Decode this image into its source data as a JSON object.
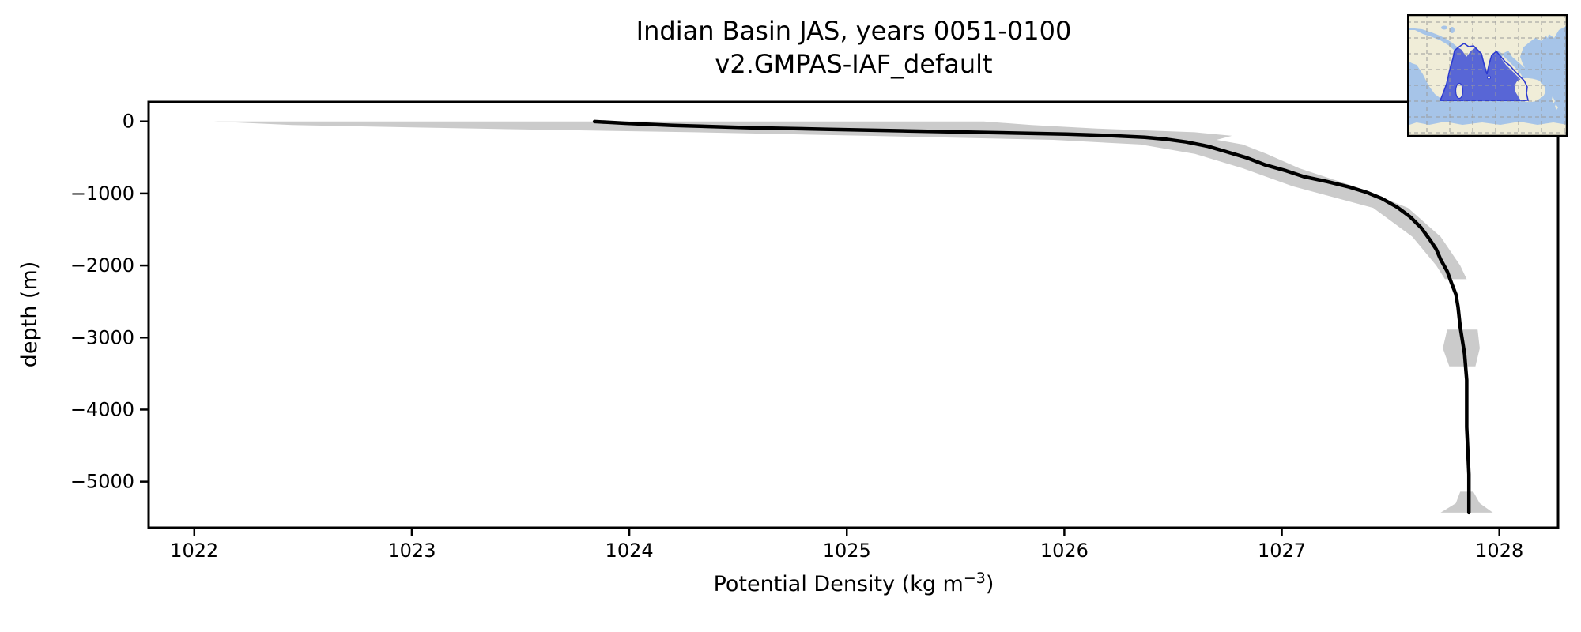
{
  "chart_data": {
    "type": "line",
    "title_line1": "Indian Basin JAS, years 0051-0100",
    "title_line2": "v2.GMPAS-IAF_default",
    "xlabel": "Potential Density (kg m⁻³)",
    "xlabel_parts": {
      "main": "Potential Density (kg m",
      "sup": "−3",
      "end": ")"
    },
    "ylabel": "depth (m)",
    "xlim": [
      1021.79,
      1028.27
    ],
    "ylim": [
      -5640,
      271
    ],
    "grid": false,
    "legend": null,
    "xticks": [
      1022,
      1023,
      1024,
      1025,
      1026,
      1027,
      1028
    ],
    "xtick_labels": [
      "1022",
      "1023",
      "1024",
      "1025",
      "1026",
      "1027",
      "1028"
    ],
    "yticks": [
      0,
      -1000,
      -2000,
      -3000,
      -4000,
      -5000
    ],
    "ytick_labels": [
      "0",
      "−1000",
      "−2000",
      "−3000",
      "−4000",
      "−5000"
    ],
    "line_color": "#000000",
    "envelope_color": "#cbcbcb",
    "series": [
      {
        "name": "mean-potential-density-profile",
        "points_rho_depth": [
          [
            1023.84,
            -2
          ],
          [
            1023.9,
            -12
          ],
          [
            1023.98,
            -25
          ],
          [
            1024.2,
            -55
          ],
          [
            1024.56,
            -88
          ],
          [
            1024.92,
            -110
          ],
          [
            1025.28,
            -132
          ],
          [
            1025.65,
            -153
          ],
          [
            1026.01,
            -175
          ],
          [
            1026.2,
            -195
          ],
          [
            1026.37,
            -220
          ],
          [
            1026.47,
            -248
          ],
          [
            1026.56,
            -285
          ],
          [
            1026.66,
            -345
          ],
          [
            1026.74,
            -415
          ],
          [
            1026.84,
            -505
          ],
          [
            1026.92,
            -600
          ],
          [
            1027.02,
            -685
          ],
          [
            1027.1,
            -765
          ],
          [
            1027.21,
            -835
          ],
          [
            1027.31,
            -910
          ],
          [
            1027.39,
            -985
          ],
          [
            1027.46,
            -1070
          ],
          [
            1027.53,
            -1190
          ],
          [
            1027.59,
            -1325
          ],
          [
            1027.64,
            -1475
          ],
          [
            1027.68,
            -1640
          ],
          [
            1027.71,
            -1775
          ],
          [
            1027.73,
            -1915
          ],
          [
            1027.76,
            -2080
          ],
          [
            1027.78,
            -2245
          ],
          [
            1027.8,
            -2400
          ],
          [
            1027.81,
            -2570
          ],
          [
            1027.82,
            -2855
          ],
          [
            1027.84,
            -3230
          ],
          [
            1027.85,
            -3590
          ],
          [
            1027.85,
            -4245
          ],
          [
            1027.86,
            -4900
          ],
          [
            1027.86,
            -5430
          ]
        ]
      },
      {
        "name": "min-max-envelope",
        "band_depth_min_max": [
          [
            0,
            1022.09,
            1025.63
          ],
          [
            -50,
            1022.45,
            1025.85
          ],
          [
            -100,
            1023.3,
            1026.15
          ],
          [
            -150,
            1024.3,
            1026.6
          ],
          [
            -200,
            1025.1,
            1026.77
          ],
          [
            -255,
            1025.95,
            1026.7
          ],
          [
            -320,
            1026.35,
            1026.82
          ],
          [
            -450,
            1026.6,
            1026.93
          ],
          [
            -650,
            1026.82,
            1027.08
          ],
          [
            -900,
            1027.05,
            1027.33
          ],
          [
            -1200,
            1027.42,
            1027.58
          ],
          [
            -1600,
            1027.6,
            1027.73
          ],
          [
            -2000,
            1027.71,
            1027.82
          ],
          [
            -2190,
            1027.75,
            1027.85
          ]
        ],
        "deep_patch_depth_min_max": [
          [
            -2890,
            1027.76,
            1027.9
          ],
          [
            -3150,
            1027.74,
            1027.91
          ],
          [
            -3400,
            1027.77,
            1027.89
          ]
        ],
        "bottom_wedge_depth_min_max": [
          [
            -5140,
            1027.82,
            1027.88
          ],
          [
            -5300,
            1027.8,
            1027.91
          ],
          [
            -5430,
            1027.73,
            1027.97
          ]
        ]
      }
    ]
  },
  "inset_map": {
    "highlighted_region": "Indian Ocean basin",
    "colors": {
      "ocean": "#a6c4e8",
      "land": "#f0edd8",
      "basin_fill": "#5866d6",
      "basin_outline": "#2d3bd0",
      "border": "#000000"
    }
  }
}
